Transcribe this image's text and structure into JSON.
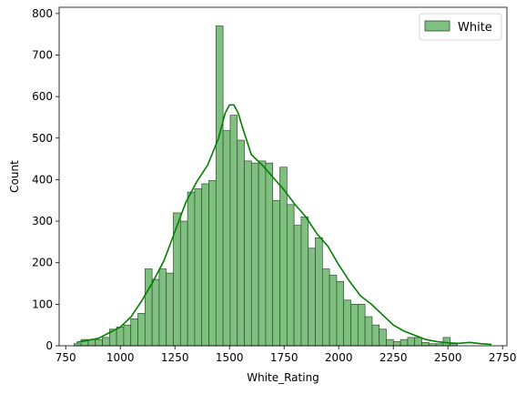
{
  "chart_data": {
    "type": "bar",
    "subtype": "histogram-with-kde",
    "title": "",
    "xlabel": "White_Rating",
    "ylabel": "Count",
    "xlim": [
      720,
      2770
    ],
    "ylim": [
      0,
      815
    ],
    "xticks": [
      750,
      1000,
      1250,
      1500,
      1750,
      2000,
      2250,
      2500,
      2750
    ],
    "yticks": [
      0,
      100,
      200,
      300,
      400,
      500,
      600,
      700,
      800
    ],
    "grid": false,
    "legend": {
      "position": "top-right",
      "entries": [
        "White"
      ]
    },
    "colors": {
      "bar_fill": "#7fbf7f",
      "bar_edge": "#2f4f2f",
      "kde_line": "#008000"
    },
    "bins": {
      "start": 788,
      "width": 32.5,
      "counts": [
        5,
        15,
        15,
        15,
        20,
        40,
        45,
        50,
        65,
        78,
        185,
        160,
        185,
        175,
        320,
        300,
        370,
        378,
        390,
        398,
        770,
        518,
        555,
        495,
        445,
        440,
        445,
        440,
        350,
        430,
        340,
        290,
        310,
        235,
        260,
        185,
        170,
        155,
        110,
        100,
        100,
        70,
        50,
        40,
        15,
        10,
        15,
        20,
        20,
        8,
        5,
        5,
        20,
        5
      ]
    },
    "series": [
      {
        "name": "White",
        "kde": {
          "x": [
            800,
            900,
            1000,
            1050,
            1100,
            1150,
            1200,
            1250,
            1300,
            1350,
            1400,
            1450,
            1480,
            1500,
            1520,
            1540,
            1560,
            1600,
            1650,
            1700,
            1750,
            1800,
            1850,
            1900,
            1950,
            2000,
            2050,
            2100,
            2150,
            2200,
            2250,
            2300,
            2350,
            2400,
            2450,
            2500,
            2550,
            2600,
            2650,
            2700
          ],
          "y": [
            8,
            18,
            45,
            70,
            110,
            155,
            205,
            275,
            345,
            395,
            435,
            500,
            560,
            580,
            580,
            560,
            525,
            460,
            435,
            405,
            375,
            340,
            310,
            270,
            240,
            195,
            155,
            120,
            100,
            75,
            50,
            35,
            25,
            15,
            10,
            7,
            6,
            8,
            5,
            3
          ]
        }
      }
    ]
  }
}
